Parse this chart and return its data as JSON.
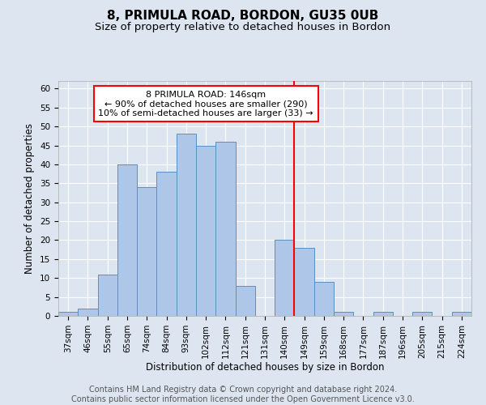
{
  "title": "8, PRIMULA ROAD, BORDON, GU35 0UB",
  "subtitle": "Size of property relative to detached houses in Bordon",
  "xlabel": "Distribution of detached houses by size in Bordon",
  "ylabel": "Number of detached properties",
  "categories": [
    "37sqm",
    "46sqm",
    "55sqm",
    "65sqm",
    "74sqm",
    "84sqm",
    "93sqm",
    "102sqm",
    "112sqm",
    "121sqm",
    "131sqm",
    "140sqm",
    "149sqm",
    "159sqm",
    "168sqm",
    "177sqm",
    "187sqm",
    "196sqm",
    "205sqm",
    "215sqm",
    "224sqm"
  ],
  "values": [
    1,
    2,
    11,
    40,
    34,
    38,
    48,
    45,
    46,
    8,
    0,
    20,
    18,
    9,
    1,
    0,
    1,
    0,
    1,
    0,
    1
  ],
  "bar_color": "#aec6e8",
  "bar_edge_color": "#5a8fc2",
  "background_color": "#dde6f0",
  "grid_color": "#ffffff",
  "vline_color": "red",
  "annotation_text": "8 PRIMULA ROAD: 146sqm\n← 90% of detached houses are smaller (290)\n10% of semi-detached houses are larger (33) →",
  "ylim": [
    0,
    62
  ],
  "yticks": [
    0,
    5,
    10,
    15,
    20,
    25,
    30,
    35,
    40,
    45,
    50,
    55,
    60
  ],
  "footer": "Contains HM Land Registry data © Crown copyright and database right 2024.\nContains public sector information licensed under the Open Government Licence v3.0.",
  "title_fontsize": 11,
  "subtitle_fontsize": 9.5,
  "label_fontsize": 8.5,
  "tick_fontsize": 7.5,
  "footer_fontsize": 7
}
